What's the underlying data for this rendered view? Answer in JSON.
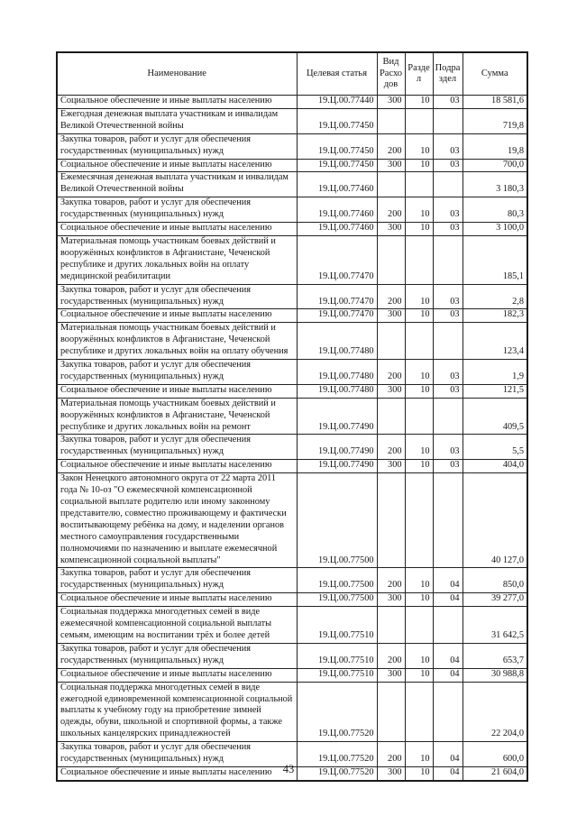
{
  "page": {
    "number": "43"
  },
  "table": {
    "headers": {
      "name": "Наименование",
      "code": "Целевая статья",
      "expense_type": "Вид Расходов",
      "section": "Раздел",
      "subsection": "Подраздел",
      "amount": "Сумма"
    },
    "rows": [
      {
        "name": "Социальное обеспечение и иные выплаты населению",
        "code": "19.Ц.00.77440",
        "expense_type": "300",
        "section": "10",
        "subsection": "03",
        "amount": "18 581,6"
      },
      {
        "name": "Ежегодная денежная выплата участникам и инвалидам Великой Отечественной войны",
        "code": "19.Ц.00.77450",
        "expense_type": "",
        "section": "",
        "subsection": "",
        "amount": "719,8"
      },
      {
        "name": "Закупка товаров, работ и услуг для обеспечения государственных (муниципальных) нужд",
        "code": "19.Ц.00.77450",
        "expense_type": "200",
        "section": "10",
        "subsection": "03",
        "amount": "19,8"
      },
      {
        "name": "Социальное обеспечение и иные выплаты населению",
        "code": "19.Ц.00.77450",
        "expense_type": "300",
        "section": "10",
        "subsection": "03",
        "amount": "700,0"
      },
      {
        "name": "Ежемесячная денежная выплата участникам и инвалидам Великой Отечественной войны",
        "code": "19.Ц.00.77460",
        "expense_type": "",
        "section": "",
        "subsection": "",
        "amount": "3 180,3"
      },
      {
        "name": "Закупка товаров, работ и услуг для обеспечения государственных (муниципальных) нужд",
        "code": "19.Ц.00.77460",
        "expense_type": "200",
        "section": "10",
        "subsection": "03",
        "amount": "80,3"
      },
      {
        "name": "Социальное обеспечение и иные выплаты населению",
        "code": "19.Ц.00.77460",
        "expense_type": "300",
        "section": "10",
        "subsection": "03",
        "amount": "3 100,0"
      },
      {
        "name": "Материальная помощь участникам боевых действий и вооружённых конфликтов в Афганистане, Чеченской республике и других локальных войн на оплату медицинской реабилитации",
        "code": "19.Ц.00.77470",
        "expense_type": "",
        "section": "",
        "subsection": "",
        "amount": "185,1"
      },
      {
        "name": "Закупка товаров, работ и услуг для обеспечения государственных (муниципальных) нужд",
        "code": "19.Ц.00.77470",
        "expense_type": "200",
        "section": "10",
        "subsection": "03",
        "amount": "2,8"
      },
      {
        "name": "Социальное обеспечение и иные выплаты населению",
        "code": "19.Ц.00.77470",
        "expense_type": "300",
        "section": "10",
        "subsection": "03",
        "amount": "182,3"
      },
      {
        "name": "Материальная помощь участникам боевых действий и вооружённых конфликтов в Афганистане, Чеченской республике и других локальных войн на оплату обучения",
        "code": "19.Ц.00.77480",
        "expense_type": "",
        "section": "",
        "subsection": "",
        "amount": "123,4"
      },
      {
        "name": "Закупка товаров, работ и услуг для обеспечения государственных (муниципальных) нужд",
        "code": "19.Ц.00.77480",
        "expense_type": "200",
        "section": "10",
        "subsection": "03",
        "amount": "1,9"
      },
      {
        "name": "Социальное обеспечение и иные выплаты населению",
        "code": "19.Ц.00.77480",
        "expense_type": "300",
        "section": "10",
        "subsection": "03",
        "amount": "121,5"
      },
      {
        "name": "Материальная помощь участникам боевых действий и вооружённых конфликтов в Афганистане, Чеченской республике и других локальных войн на ремонт",
        "code": "19.Ц.00.77490",
        "expense_type": "",
        "section": "",
        "subsection": "",
        "amount": "409,5"
      },
      {
        "name": "Закупка товаров, работ и услуг для обеспечения государственных (муниципальных) нужд",
        "code": "19.Ц.00.77490",
        "expense_type": "200",
        "section": "10",
        "subsection": "03",
        "amount": "5,5"
      },
      {
        "name": "Социальное обеспечение и иные выплаты населению",
        "code": "19.Ц.00.77490",
        "expense_type": "300",
        "section": "10",
        "subsection": "03",
        "amount": "404,0"
      },
      {
        "name": "Закон Ненецкого автономного округа от 22 марта 2011 года № 10-оз \"О ежемесячной компенсационной социальной выплате родителю или иному законному представителю, совместно проживающему и фактически воспитывающему ребёнка на дому, и наделении органов местного самоуправления государственными полномочиями по назначению и выплате ежемесячной компенсационной социальной выплаты\"",
        "code": "19.Ц.00.77500",
        "expense_type": "",
        "section": "",
        "subsection": "",
        "amount": "40 127,0"
      },
      {
        "name": "Закупка товаров, работ и услуг для обеспечения государственных (муниципальных) нужд",
        "code": "19.Ц.00.77500",
        "expense_type": "200",
        "section": "10",
        "subsection": "04",
        "amount": "850,0"
      },
      {
        "name": "Социальное обеспечение и иные выплаты населению",
        "code": "19.Ц.00.77500",
        "expense_type": "300",
        "section": "10",
        "subsection": "04",
        "amount": "39 277,0"
      },
      {
        "name": "Социальная поддержка многодетных семей в виде ежемесячной компенсационной социальной выплаты семьям, имеющим на воспитании трёх и более детей",
        "code": "19.Ц.00.77510",
        "expense_type": "",
        "section": "",
        "subsection": "",
        "amount": "31 642,5"
      },
      {
        "name": "Закупка товаров, работ и услуг для обеспечения государственных (муниципальных) нужд",
        "code": "19.Ц.00.77510",
        "expense_type": "200",
        "section": "10",
        "subsection": "04",
        "amount": "653,7"
      },
      {
        "name": "Социальное обеспечение и иные выплаты населению",
        "code": "19.Ц.00.77510",
        "expense_type": "300",
        "section": "10",
        "subsection": "04",
        "amount": "30 988,8"
      },
      {
        "name": "Социальная поддержка многодетных семей в виде ежегодной единовременной компенсационной социальной выплаты к учебному году на приобретение зимней одежды, обуви, школьной и спортивной формы, а также школьных канцелярских принадлежностей",
        "code": "19.Ц.00.77520",
        "expense_type": "",
        "section": "",
        "subsection": "",
        "amount": "22 204,0"
      },
      {
        "name": "Закупка товаров, работ и услуг для обеспечения государственных (муниципальных) нужд",
        "code": "19.Ц.00.77520",
        "expense_type": "200",
        "section": "10",
        "subsection": "04",
        "amount": "600,0"
      },
      {
        "name": "Социальное обеспечение и иные выплаты населению",
        "code": "19.Ц.00.77520",
        "expense_type": "300",
        "section": "10",
        "subsection": "04",
        "amount": "21 604,0"
      }
    ]
  }
}
